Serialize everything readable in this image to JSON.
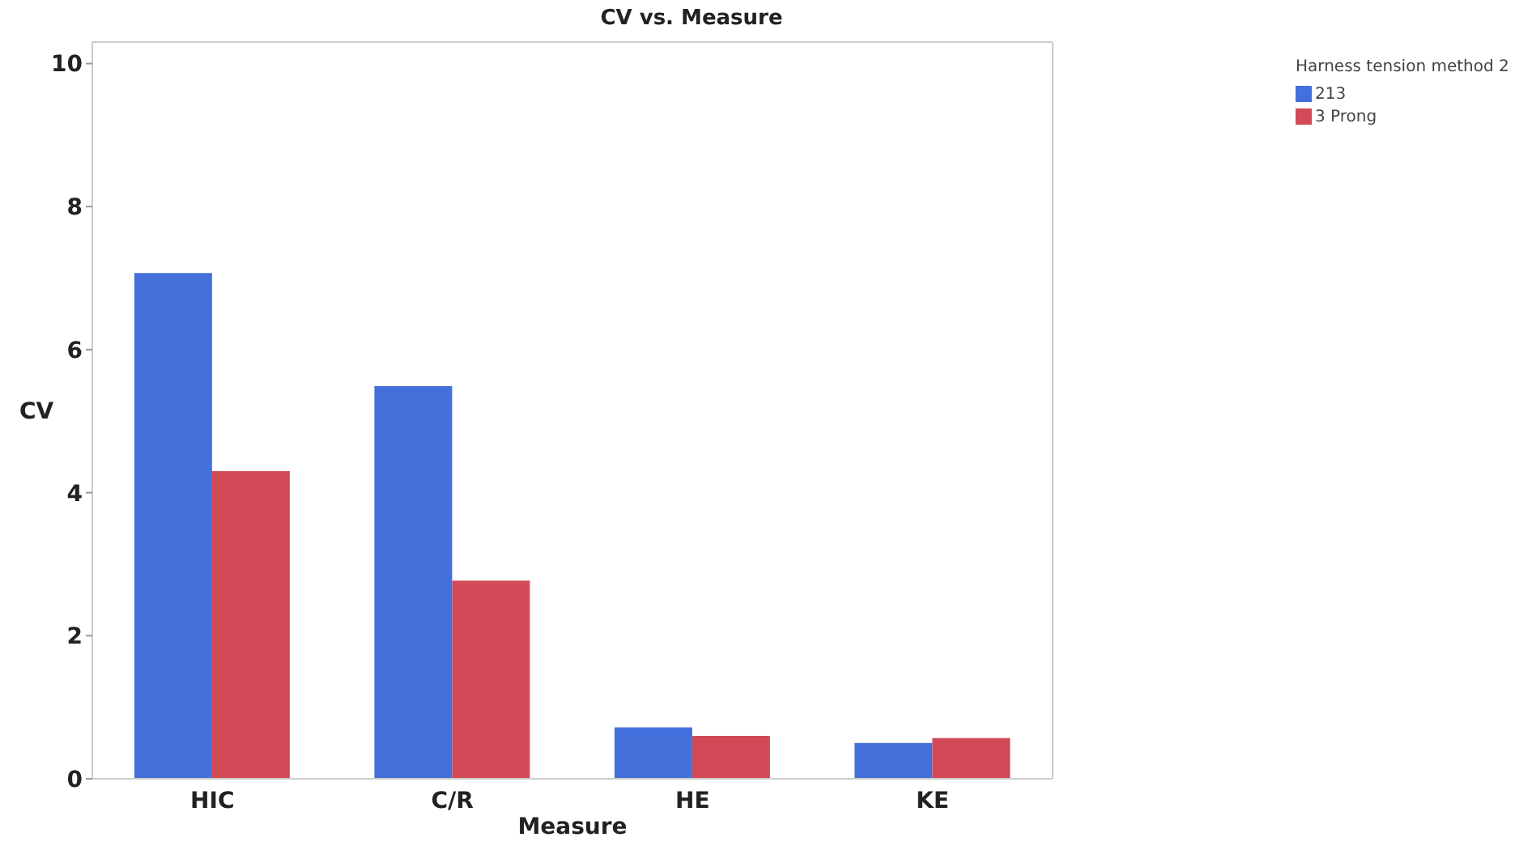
{
  "chart_data": {
    "type": "bar",
    "title": "CV vs. Measure",
    "xlabel": "Measure",
    "ylabel": "CV",
    "legend_title": "Harness tension method 2",
    "categories": [
      "HIC",
      "C/R",
      "HE",
      "KE"
    ],
    "series": [
      {
        "name": "213",
        "color": "#4370db",
        "values": [
          7.07,
          5.49,
          0.72,
          0.5
        ]
      },
      {
        "name": "3 Prong",
        "color": "#d24a57",
        "values": [
          4.3,
          2.77,
          0.6,
          0.57
        ]
      }
    ],
    "ylim": [
      0,
      10.3
    ],
    "yticks": [
      0,
      2,
      4,
      6,
      8,
      10
    ],
    "legend": "top right"
  }
}
